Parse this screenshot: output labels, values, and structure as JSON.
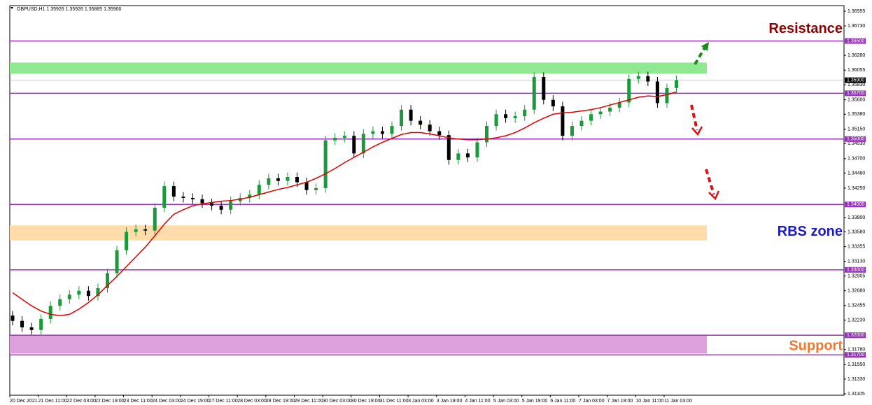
{
  "chart_data": {
    "type": "candlestick",
    "title": "GBPUSD,H1  1.35926 1.35926 1.35885 1.35900",
    "x_labels": [
      "20 Dec 2021",
      "21 Dec 11:00",
      "22 Dec 03:00",
      "22 Dec 19:00",
      "23 Dec 11:00",
      "24 Dec 03:00",
      "24 Dec 19:00",
      "27 Dec 11:00",
      "28 Dec 03:00",
      "28 Dec 19:00",
      "29 Dec 11:00",
      "30 Dec 03:00",
      "30 Dec 19:00",
      "31 Dec 11:00",
      "3 Jan 03:00",
      "3 Jan 19:00",
      "4 Jan 11:00",
      "5 Jan 03:00",
      "5 Jan 19:00",
      "6 Jan 11:00",
      "7 Jan 03:00",
      "7 Jan 19:00",
      "10 Jan 11:00",
      "11 Jan 03:00"
    ],
    "open": [
      1.323,
      1.3222,
      1.3212,
      1.3208,
      1.3225,
      1.3245,
      1.3255,
      1.3262,
      1.3268,
      1.326,
      1.3272,
      1.3295,
      1.333,
      1.3358,
      1.3362,
      1.336,
      1.3395,
      1.3428,
      1.3412,
      1.341,
      1.3408,
      1.3402,
      1.3398,
      1.3392,
      1.3405,
      1.341,
      1.3415,
      1.343,
      1.344,
      1.3436,
      1.3442,
      1.3434,
      1.3422,
      1.3425,
      1.3498,
      1.3502,
      1.3505,
      1.3478,
      1.3508,
      1.3512,
      1.3508,
      1.352,
      1.3545,
      1.3528,
      1.3522,
      1.3512,
      1.3506,
      1.3468,
      1.3478,
      1.3472,
      1.3495,
      1.352,
      1.3538,
      1.3532,
      1.3535,
      1.3545,
      1.3595,
      1.356,
      1.355,
      1.3505,
      1.352,
      1.3528,
      1.3538,
      1.3542,
      1.3548,
      1.3556,
      1.3592,
      1.3596,
      1.3588,
      1.3555,
      1.3578
    ],
    "high": [
      1.3237,
      1.3229,
      1.3219,
      1.3232,
      1.3252,
      1.3262,
      1.3269,
      1.3275,
      1.3275,
      1.3279,
      1.3302,
      1.3337,
      1.3365,
      1.3369,
      1.3369,
      1.3402,
      1.3435,
      1.3435,
      1.3419,
      1.3417,
      1.3415,
      1.3409,
      1.3405,
      1.3412,
      1.3417,
      1.3422,
      1.3437,
      1.3447,
      1.3447,
      1.3449,
      1.3449,
      1.3441,
      1.3432,
      1.3505,
      1.3509,
      1.3512,
      1.3512,
      1.3515,
      1.3519,
      1.3519,
      1.3527,
      1.3552,
      1.3552,
      1.3535,
      1.3529,
      1.3519,
      1.3513,
      1.3485,
      1.3485,
      1.3502,
      1.3527,
      1.3545,
      1.3545,
      1.3542,
      1.3552,
      1.3602,
      1.3602,
      1.3567,
      1.3557,
      1.3527,
      1.3535,
      1.3545,
      1.3549,
      1.3555,
      1.3563,
      1.3599,
      1.3603,
      1.3603,
      1.3595,
      1.3585,
      1.3597
    ],
    "low": [
      1.3215,
      1.3205,
      1.3201,
      1.3201,
      1.3218,
      1.3238,
      1.3248,
      1.3255,
      1.3253,
      1.3253,
      1.3265,
      1.3288,
      1.3323,
      1.3351,
      1.3353,
      1.3353,
      1.3388,
      1.3405,
      1.3403,
      1.3401,
      1.3395,
      1.3391,
      1.3385,
      1.3385,
      1.3398,
      1.3403,
      1.3408,
      1.3423,
      1.3429,
      1.3429,
      1.3427,
      1.3415,
      1.3415,
      1.3418,
      1.3491,
      1.3495,
      1.3471,
      1.3471,
      1.3501,
      1.3501,
      1.3501,
      1.3513,
      1.3521,
      1.3515,
      1.3505,
      1.3499,
      1.3461,
      1.3461,
      1.3465,
      1.3465,
      1.3488,
      1.3513,
      1.3525,
      1.3525,
      1.3528,
      1.3538,
      1.3553,
      1.3543,
      1.3498,
      1.3498,
      1.3513,
      1.3521,
      1.3531,
      1.3535,
      1.3541,
      1.3549,
      1.3585,
      1.3581,
      1.3548,
      1.3548,
      1.3571
    ],
    "close": [
      1.3222,
      1.3212,
      1.3208,
      1.3225,
      1.3245,
      1.3255,
      1.3262,
      1.3268,
      1.326,
      1.3272,
      1.3295,
      1.333,
      1.3358,
      1.3362,
      1.336,
      1.3395,
      1.3428,
      1.3412,
      1.341,
      1.3408,
      1.3402,
      1.3398,
      1.3392,
      1.3405,
      1.341,
      1.3415,
      1.343,
      1.344,
      1.3436,
      1.3442,
      1.3434,
      1.3422,
      1.3425,
      1.3498,
      1.3502,
      1.3505,
      1.3478,
      1.3508,
      1.3512,
      1.3508,
      1.352,
      1.3545,
      1.3528,
      1.3522,
      1.3512,
      1.3506,
      1.3468,
      1.3478,
      1.3472,
      1.3495,
      1.352,
      1.3538,
      1.3532,
      1.3535,
      1.3545,
      1.3595,
      1.356,
      1.355,
      1.3505,
      1.352,
      1.3528,
      1.3538,
      1.3542,
      1.3548,
      1.3556,
      1.3592,
      1.3596,
      1.3588,
      1.3555,
      1.3578,
      1.359
    ],
    "moving_average": {
      "color": "#e00000",
      "values": [
        1.3265,
        1.3255,
        1.3245,
        1.3237,
        1.3232,
        1.323,
        1.3232,
        1.324,
        1.325,
        1.3262,
        1.3276,
        1.329,
        1.3305,
        1.332,
        1.3335,
        1.3352,
        1.337,
        1.3385,
        1.3392,
        1.3398,
        1.3401,
        1.3403,
        1.3405,
        1.3406,
        1.3408,
        1.3411,
        1.3415,
        1.3419,
        1.3423,
        1.3426,
        1.343,
        1.3434,
        1.344,
        1.3447,
        1.3455,
        1.3464,
        1.3472,
        1.348,
        1.3488,
        1.3495,
        1.3501,
        1.3507,
        1.351,
        1.351,
        1.3508,
        1.3505,
        1.3502,
        1.35,
        1.3499,
        1.3499,
        1.35,
        1.3502,
        1.3505,
        1.351,
        1.3517,
        1.3525,
        1.3532,
        1.3538,
        1.354,
        1.3541,
        1.3543,
        1.3545,
        1.3548,
        1.3552,
        1.3556,
        1.356,
        1.3564,
        1.3566,
        1.3565,
        1.3568,
        1.3572
      ]
    },
    "bull_color": "#1a9a3a",
    "bear_color": "#000000",
    "ylim": [
      1.31083,
      1.37041
    ],
    "yticks": [
      {
        "value": 1.36955,
        "label": "1.36955"
      },
      {
        "value": 1.3673,
        "label": "1.36730"
      },
      {
        "value": 1.3628,
        "label": "1.36280"
      },
      {
        "value": 1.36055,
        "label": "1.36055"
      },
      {
        "value": 1.3583,
        "label": "1.35830"
      },
      {
        "value": 1.356,
        "label": "1.35600"
      },
      {
        "value": 1.3538,
        "label": "1.35380"
      },
      {
        "value": 1.3515,
        "label": "1.35150"
      },
      {
        "value": 1.3493,
        "label": "1.34930"
      },
      {
        "value": 1.347,
        "label": "1.34700"
      },
      {
        "value": 1.3448,
        "label": "1.34480"
      },
      {
        "value": 1.3425,
        "label": "1.34250"
      },
      {
        "value": 1.338,
        "label": "1.33800"
      },
      {
        "value": 1.3358,
        "label": "1.33580"
      },
      {
        "value": 1.33355,
        "label": "1.33355"
      },
      {
        "value": 1.3313,
        "label": "1.33130"
      },
      {
        "value": 1.32905,
        "label": "1.32905"
      },
      {
        "value": 1.3268,
        "label": "1.32680"
      },
      {
        "value": 1.32455,
        "label": "1.32455"
      },
      {
        "value": 1.3223,
        "label": "1.32230"
      },
      {
        "value": 1.3178,
        "label": "1.31780"
      },
      {
        "value": 1.3155,
        "label": "1.31550"
      },
      {
        "value": 1.3133,
        "label": "1.31330"
      },
      {
        "value": 1.31105,
        "label": "1.31105"
      }
    ],
    "levels": [
      {
        "value": 1.365,
        "label": "1.36500"
      },
      {
        "value": 1.357,
        "label": "1.35700"
      },
      {
        "value": 1.35,
        "label": "1.35000"
      },
      {
        "value": 1.34,
        "label": "1.34000"
      },
      {
        "value": 1.33,
        "label": "1.33000"
      },
      {
        "value": 1.32,
        "label": "1.32000"
      },
      {
        "value": 1.317,
        "label": "1.31700"
      }
    ],
    "level_color": "#9b2fc0",
    "current_price": {
      "value": 1.359,
      "label": "1.35900"
    },
    "zones": [
      {
        "from": 1.36,
        "to": 1.3617,
        "color": "#90e890"
      },
      {
        "from": 1.3345,
        "to": 1.3368,
        "color": "#ffdcaa"
      },
      {
        "from": 1.3172,
        "to": 1.32,
        "color": "#dda0dd"
      }
    ],
    "annotations": [
      {
        "text": "Resistance",
        "y": 1.3668,
        "color": "#8b0000"
      },
      {
        "text": "RBS zone",
        "y": 1.3358,
        "color": "#1a1acd"
      },
      {
        "text": "Support",
        "y": 1.3183,
        "color": "#f07830"
      }
    ]
  }
}
